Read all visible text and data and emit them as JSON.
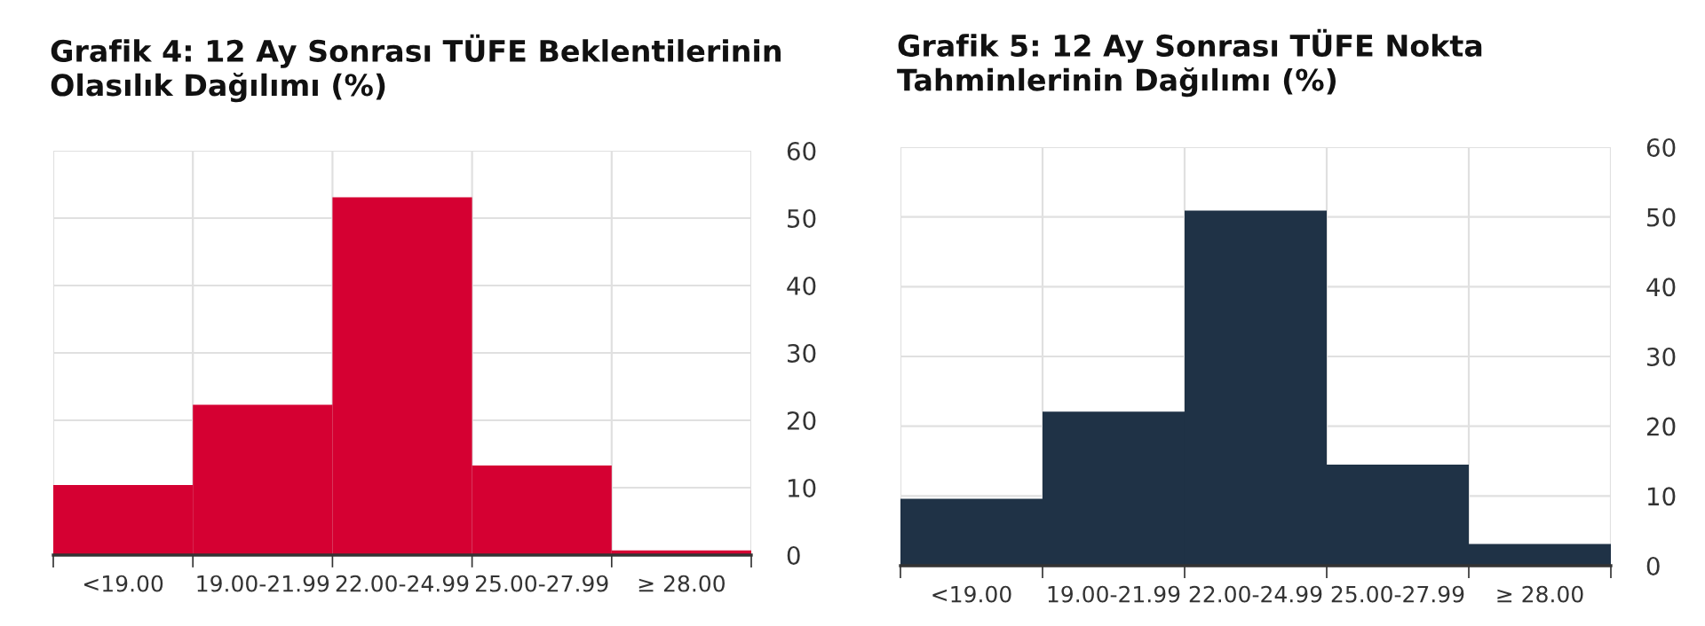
{
  "chart_data": [
    {
      "type": "bar",
      "title": "Grafik 4: 12 Ay Sonrası TÜFE Beklentilerinin\nOlasılık Dağılımı (%)",
      "categories": [
        "<19.00",
        "19.00-21.99",
        "22.00-24.99",
        "25.00-27.99",
        "≥ 28.00"
      ],
      "values": [
        10.4,
        22.3,
        53.1,
        13.3,
        0.7
      ],
      "color": "#d50032",
      "ylim": [
        0,
        60
      ],
      "yticks": [
        0,
        10,
        20,
        30,
        40,
        50,
        60
      ],
      "grid": true
    },
    {
      "type": "bar",
      "title": "Grafik 5: 12 Ay Sonrası TÜFE Nokta\nTahminlerinin Dağılımı (%)",
      "categories": [
        "<19.00",
        "19.00-21.99",
        "22.00-24.99",
        "25.00-27.99",
        "≥ 28.00"
      ],
      "values": [
        9.6,
        22.1,
        50.9,
        14.5,
        3.1
      ],
      "color": "#1f3246",
      "ylim": [
        0,
        60
      ],
      "yticks": [
        0,
        10,
        20,
        30,
        40,
        50,
        60
      ],
      "grid": true
    }
  ]
}
